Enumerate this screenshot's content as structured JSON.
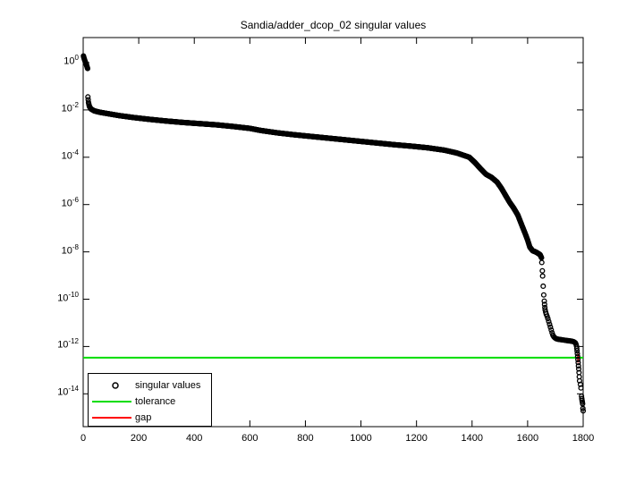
{
  "chart_data": {
    "type": "scatter",
    "title": "Sandia/adder_dcop_02 singular values",
    "xlabel": "",
    "ylabel": "",
    "grid": false,
    "y_scale": "log10",
    "xlim": [
      0,
      1800
    ],
    "ylim_log10": [
      -15.4,
      1.06
    ],
    "x_ticks": [
      0,
      200,
      400,
      600,
      800,
      1000,
      1200,
      1400,
      1600,
      1800
    ],
    "y_tick_exponents": [
      0,
      -2,
      -4,
      -6,
      -8,
      -10,
      -12,
      -14
    ],
    "legend_position": "lower-left",
    "legend": {
      "entries": [
        {
          "label": "singular values",
          "marker": "circle",
          "color": "#000000"
        },
        {
          "label": "tolerance",
          "marker": "line",
          "color": "#00dd00"
        },
        {
          "label": "gap",
          "marker": "line",
          "color": "#ff0000"
        }
      ]
    },
    "series_name": "singular values",
    "dense_curve_log10_anchors": [
      [
        1,
        0.28
      ],
      [
        4,
        0.15
      ],
      [
        8,
        0.02
      ],
      [
        12,
        -0.1
      ],
      [
        16,
        -0.25
      ],
      [
        17,
        -1.45
      ],
      [
        19,
        -1.68
      ],
      [
        22,
        -1.84
      ],
      [
        28,
        -1.96
      ],
      [
        40,
        -2.04
      ],
      [
        60,
        -2.1
      ],
      [
        90,
        -2.16
      ],
      [
        130,
        -2.24
      ],
      [
        180,
        -2.32
      ],
      [
        240,
        -2.4
      ],
      [
        300,
        -2.47
      ],
      [
        360,
        -2.53
      ],
      [
        420,
        -2.58
      ],
      [
        480,
        -2.63
      ],
      [
        540,
        -2.7
      ],
      [
        600,
        -2.78
      ],
      [
        640,
        -2.87
      ],
      [
        700,
        -2.97
      ],
      [
        760,
        -3.05
      ],
      [
        820,
        -3.12
      ],
      [
        880,
        -3.19
      ],
      [
        940,
        -3.26
      ],
      [
        1000,
        -3.33
      ],
      [
        1060,
        -3.4
      ],
      [
        1120,
        -3.47
      ],
      [
        1180,
        -3.53
      ],
      [
        1240,
        -3.6
      ],
      [
        1300,
        -3.7
      ],
      [
        1345,
        -3.82
      ],
      [
        1390,
        -4.0
      ],
      [
        1410,
        -4.22
      ],
      [
        1430,
        -4.48
      ],
      [
        1450,
        -4.72
      ],
      [
        1470,
        -4.85
      ],
      [
        1490,
        -5.05
      ],
      [
        1505,
        -5.3
      ],
      [
        1520,
        -5.6
      ],
      [
        1535,
        -5.9
      ],
      [
        1550,
        -6.15
      ],
      [
        1565,
        -6.45
      ],
      [
        1580,
        -6.9
      ],
      [
        1592,
        -7.25
      ],
      [
        1600,
        -7.5
      ],
      [
        1608,
        -7.8
      ],
      [
        1618,
        -7.95
      ],
      [
        1632,
        -8.02
      ],
      [
        1645,
        -8.12
      ],
      [
        1650,
        -8.25
      ]
    ],
    "tail_points_log10": [
      [
        1651,
        -8.45
      ],
      [
        1653,
        -8.8
      ],
      [
        1654,
        -9.02
      ],
      [
        1656,
        -9.45
      ],
      [
        1658,
        -9.82
      ],
      [
        1660,
        -10.08
      ],
      [
        1661,
        -10.22
      ],
      [
        1662,
        -10.35
      ],
      [
        1663,
        -10.45
      ],
      [
        1665,
        -10.55
      ],
      [
        1667,
        -10.63
      ],
      [
        1670,
        -10.72
      ],
      [
        1673,
        -10.82
      ],
      [
        1676,
        -10.94
      ],
      [
        1679,
        -11.06
      ],
      [
        1682,
        -11.18
      ],
      [
        1685,
        -11.3
      ],
      [
        1688,
        -11.42
      ],
      [
        1691,
        -11.52
      ],
      [
        1694,
        -11.58
      ],
      [
        1697,
        -11.62
      ],
      [
        1700,
        -11.65
      ],
      [
        1703,
        -11.67
      ],
      [
        1706,
        -11.68
      ],
      [
        1709,
        -11.69
      ],
      [
        1712,
        -11.7
      ],
      [
        1715,
        -11.7
      ],
      [
        1718,
        -11.71
      ],
      [
        1721,
        -11.71
      ],
      [
        1724,
        -11.72
      ],
      [
        1727,
        -11.72
      ],
      [
        1730,
        -11.73
      ],
      [
        1733,
        -11.73
      ],
      [
        1736,
        -11.74
      ],
      [
        1739,
        -11.74
      ],
      [
        1742,
        -11.75
      ],
      [
        1745,
        -11.75
      ],
      [
        1748,
        -11.76
      ],
      [
        1751,
        -11.76
      ],
      [
        1754,
        -11.77
      ],
      [
        1757,
        -11.77
      ],
      [
        1760,
        -11.78
      ],
      [
        1763,
        -11.79
      ],
      [
        1766,
        -11.8
      ],
      [
        1769,
        -11.82
      ],
      [
        1772,
        -11.85
      ],
      [
        1774,
        -11.9
      ],
      [
        1776,
        -11.98
      ],
      [
        1777,
        -12.08
      ],
      [
        1778,
        -12.18
      ],
      [
        1779,
        -12.3
      ],
      [
        1780,
        -12.42
      ],
      [
        1781,
        -12.55
      ],
      [
        1782,
        -12.68
      ],
      [
        1783,
        -12.82
      ],
      [
        1784,
        -12.95
      ],
      [
        1785,
        -13.1
      ],
      [
        1786,
        -13.28
      ],
      [
        1787,
        -13.45
      ],
      [
        1790,
        -13.6
      ],
      [
        1792,
        -13.75
      ],
      [
        1794,
        -14.1
      ],
      [
        1795,
        -14.2
      ],
      [
        1796,
        -14.28
      ],
      [
        1797,
        -14.35
      ],
      [
        1798,
        -14.42
      ],
      [
        1799,
        -14.62
      ],
      [
        1800,
        -14.72
      ]
    ],
    "tolerance": {
      "label": "tolerance",
      "value_log10": -12.47,
      "approx_value": "3.4e-13",
      "color": "#00dd00"
    },
    "gap": {
      "label": "gap",
      "x": 1782,
      "top_log10": -12.3,
      "bottom_log10": -12.68,
      "color": "#ff0000"
    },
    "marker": {
      "shape": "open-circle",
      "color": "#000000"
    }
  }
}
